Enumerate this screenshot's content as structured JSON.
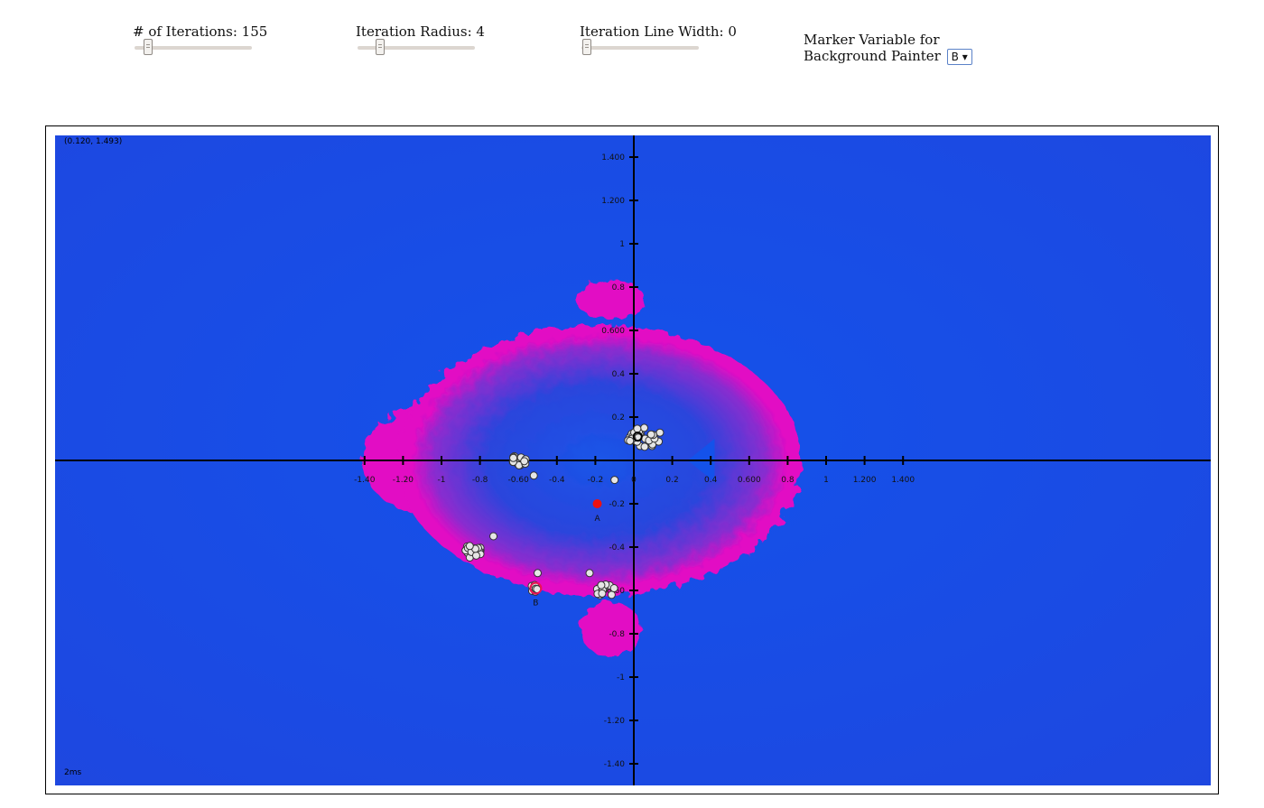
{
  "controls": {
    "iterations": {
      "label": "# of Iterations: 155",
      "value": 155,
      "min": 0,
      "max": 1000
    },
    "radius": {
      "label": "Iteration Radius: 4",
      "value": 4,
      "min": 0,
      "max": 40
    },
    "line_width": {
      "label": "Iteration Line Width: 0",
      "value": 0,
      "min": 0,
      "max": 10
    },
    "marker": {
      "label": "Marker Variable for Background Painter",
      "selected": "B",
      "arrow": "▾"
    }
  },
  "plot": {
    "coord_readout": "(0.120, 1.493)",
    "timing": "2ms",
    "colors": {
      "background": "#1d4fe8",
      "set": "#e20cc4",
      "axis": "#000000",
      "marker_a": "#ee1111",
      "point": "#e6e6e6"
    },
    "x_ticks": [
      "-1.40",
      "-1.20",
      "-1",
      "-0.8",
      "-0.60",
      "-0.4",
      "-0.2",
      "0",
      "0.2",
      "0.4",
      "0.600",
      "0.8",
      "1",
      "1.200",
      "1.400"
    ],
    "y_ticks": [
      "1.400",
      "1.200",
      "1",
      "0.8",
      "0.600",
      "0.4",
      "0.2",
      "-0.2",
      "-0.4",
      "-0.60",
      "-0.8",
      "-1",
      "-1.20",
      "-1.40"
    ],
    "markers": [
      {
        "name": "A",
        "re": -0.19,
        "im": -0.2
      },
      {
        "name": "B",
        "re": -0.51,
        "im": -0.59
      }
    ]
  }
}
